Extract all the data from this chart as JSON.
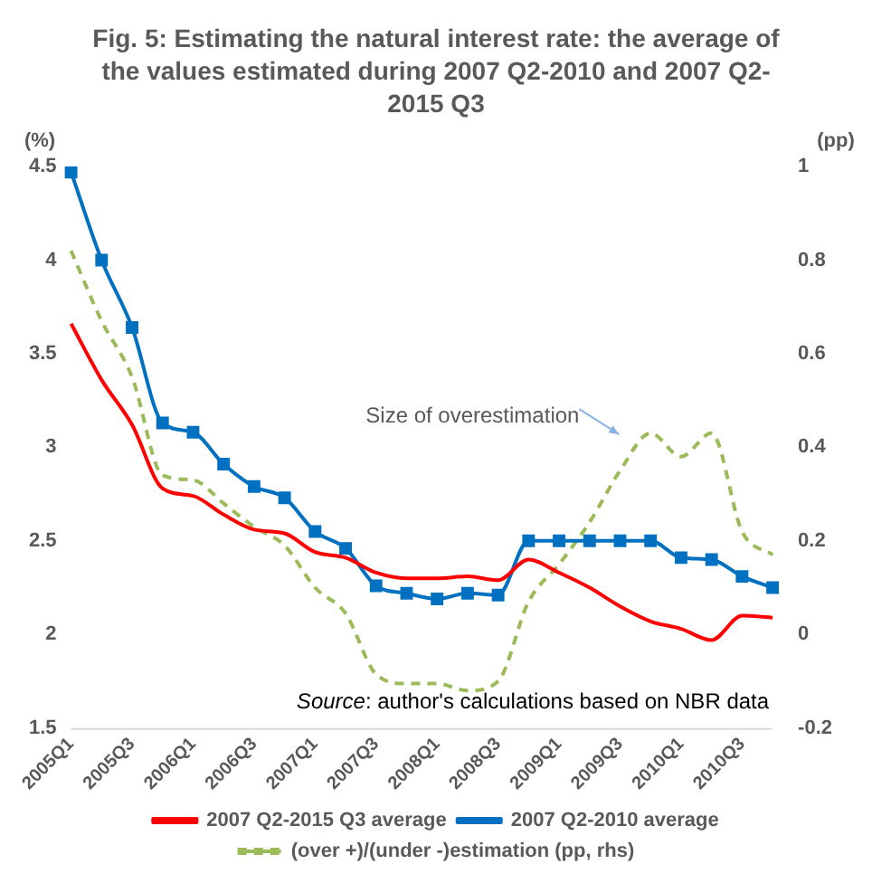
{
  "chart_data": {
    "type": "line",
    "title": "Fig. 5: Estimating the natural interest rate: the average of the values estimated during 2007 Q2-2010 and 2007 Q2-2015 Q3",
    "ylabel": "(%)",
    "y2label": "(pp)",
    "categories": [
      "2005Q1",
      null,
      "2005Q3",
      null,
      "2006Q1",
      null,
      "2006Q3",
      null,
      "2007Q1",
      null,
      "2007Q3",
      null,
      "2008Q1",
      null,
      "2008Q3",
      null,
      "2009Q1",
      null,
      "2009Q3",
      null,
      "2010Q1",
      null,
      "2010Q3",
      null
    ],
    "series": [
      {
        "name": "2007 Q2-2015 Q3 average",
        "color": "#ff0000",
        "marker": "none",
        "values": [
          3.66,
          3.36,
          3.12,
          2.78,
          2.74,
          2.64,
          2.56,
          2.54,
          2.44,
          2.41,
          2.33,
          2.3,
          2.3,
          2.31,
          2.29,
          2.4,
          2.33,
          2.25,
          2.15,
          2.07,
          2.03,
          1.97,
          2.1,
          2.09
        ]
      },
      {
        "name": "2007 Q2-2010 average",
        "color": "#0070c0",
        "marker": "square",
        "values": [
          4.47,
          4.0,
          3.64,
          3.13,
          3.08,
          2.91,
          2.79,
          2.73,
          2.55,
          2.46,
          2.26,
          2.22,
          2.19,
          2.22,
          2.21,
          2.5,
          2.5,
          2.5,
          2.5,
          2.5,
          2.41,
          2.4,
          2.31,
          2.25
        ]
      },
      {
        "name": "(over +)/(under -)estimation (pp, rhs)",
        "color": "#9bbb59",
        "marker": "none",
        "line_style": "dashed",
        "axis": "y2",
        "values": [
          0.82,
          0.67,
          0.55,
          0.34,
          0.33,
          0.28,
          0.23,
          0.19,
          0.1,
          0.045,
          -0.085,
          -0.105,
          -0.105,
          -0.12,
          -0.1,
          0.07,
          0.15,
          0.24,
          0.35,
          0.43,
          0.38,
          0.43,
          0.22,
          0.17
        ]
      }
    ],
    "ylim": [
      1.5,
      4.5
    ],
    "yticks": [
      1.5,
      2,
      2.5,
      3,
      3.5,
      4,
      4.5
    ],
    "y2lim": [
      -0.2,
      1
    ],
    "y2ticks": [
      -0.2,
      0,
      0.2,
      0.4,
      0.6,
      0.8,
      1
    ],
    "annotations": [
      "Size of overestimation",
      "Source: author's calculations based on NBR data"
    ],
    "grid": false,
    "legend": "bottom"
  }
}
